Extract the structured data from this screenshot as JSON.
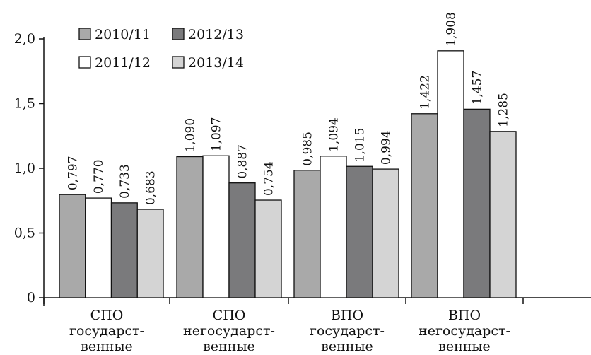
{
  "chart_data": {
    "type": "bar",
    "categories": [
      [
        "СПО",
        "государст-",
        "венные"
      ],
      [
        "СПО",
        "негосударст-",
        "венные"
      ],
      [
        "ВПО",
        "государст-",
        "венные"
      ],
      [
        "ВПО",
        "негосударст-",
        "венные"
      ]
    ],
    "series": [
      {
        "name": "2010/11",
        "color": "#a9a9a9",
        "values": [
          0.797,
          1.09,
          0.985,
          1.422
        ],
        "labels": [
          "0,797",
          "1,090",
          "0,985",
          "1,422"
        ]
      },
      {
        "name": "2011/12",
        "color": "#ffffff",
        "values": [
          0.77,
          1.097,
          1.094,
          1.908
        ],
        "labels": [
          "0,770",
          "1,097",
          "1,094",
          "1,908"
        ]
      },
      {
        "name": "2012/13",
        "color": "#7a7a7c",
        "values": [
          0.733,
          0.887,
          1.015,
          1.457
        ],
        "labels": [
          "0,733",
          "0,887",
          "1,015",
          "1,457"
        ]
      },
      {
        "name": "2013/14",
        "color": "#d4d4d4",
        "values": [
          0.683,
          0.754,
          0.994,
          1.285
        ],
        "labels": [
          "0,683",
          "0,754",
          "0,994",
          "1,285"
        ]
      }
    ],
    "yticks": [
      {
        "value": 0,
        "label": "0"
      },
      {
        "value": 0.5,
        "label": "0,5"
      },
      {
        "value": 1.0,
        "label": "1,0"
      },
      {
        "value": 1.5,
        "label": "1,5"
      },
      {
        "value": 2.0,
        "label": "2,0"
      }
    ],
    "ylim": [
      0,
      2.0
    ],
    "grid": false,
    "legend_position": "top-left",
    "title": "",
    "xlabel": "",
    "ylabel": ""
  }
}
